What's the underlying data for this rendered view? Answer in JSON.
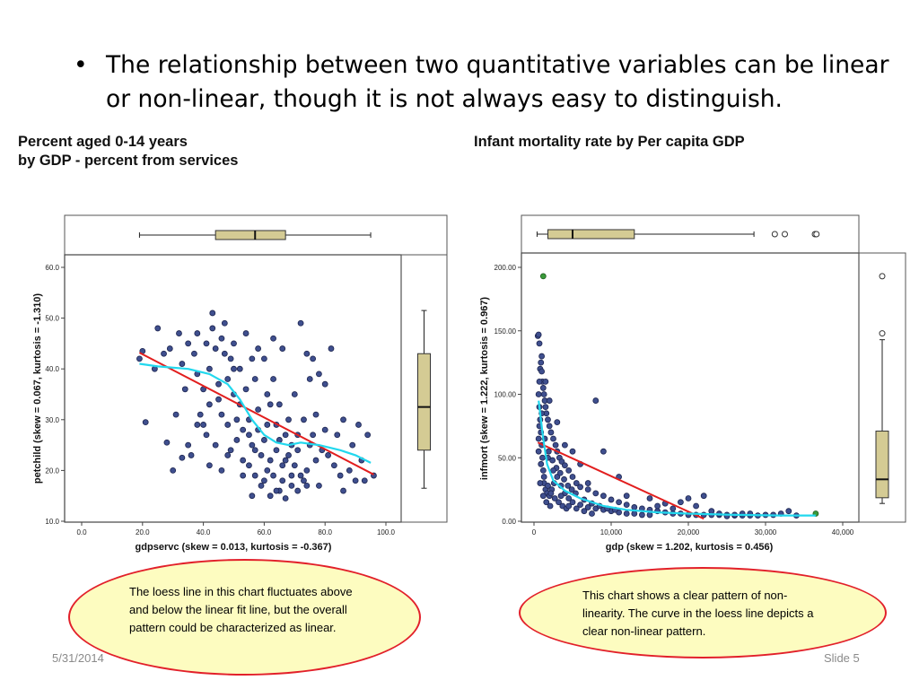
{
  "slide": {
    "bullet": "The relationship between two quantitative variables can be linear or non-linear, though it is not always easy to distinguish.",
    "date": "5/31/2014",
    "slide_number": "Slide 5"
  },
  "chart_data": [
    {
      "type": "scatter",
      "title": "Percent aged 0-14 years\nby GDP - percent from services",
      "xlabel": "gdpservc (skew = 0.013, kurtosis = -0.367)",
      "ylabel": "petchild (skew = 0.067, kurtosis = -1.310)",
      "xlim": [
        0,
        100
      ],
      "ylim": [
        10,
        60
      ],
      "xticks": [
        "0.0",
        "20.0",
        "40.0",
        "60.0",
        "80.0",
        "100.0"
      ],
      "yticks": [
        "10.0",
        "20.0",
        "30.0",
        "40.0",
        "50.0",
        "60.0"
      ],
      "linear_fit": [
        [
          19,
          43.2
        ],
        [
          96,
          19.2
        ]
      ],
      "loess": [
        [
          19,
          41
        ],
        [
          25,
          40.5
        ],
        [
          35,
          40
        ],
        [
          42,
          39
        ],
        [
          48,
          37
        ],
        [
          52,
          34
        ],
        [
          56,
          30
        ],
        [
          60,
          27
        ],
        [
          64,
          25.5
        ],
        [
          68,
          25
        ],
        [
          72,
          25.5
        ],
        [
          78,
          25
        ],
        [
          85,
          24
        ],
        [
          90,
          23
        ],
        [
          95,
          21.5
        ]
      ],
      "marginal_boxplot_x": {
        "min": 19,
        "q1": 44,
        "median": 57,
        "q3": 67,
        "max": 95
      },
      "marginal_boxplot_y": {
        "min": 16.5,
        "q1": 24,
        "median": 32.5,
        "q3": 43,
        "max": 51.5
      },
      "points": [
        [
          19,
          42
        ],
        [
          20,
          43.5
        ],
        [
          21,
          29.5
        ],
        [
          24,
          40
        ],
        [
          25,
          48
        ],
        [
          27,
          43
        ],
        [
          28,
          25.5
        ],
        [
          29,
          44
        ],
        [
          30,
          20
        ],
        [
          31,
          31
        ],
        [
          32,
          47
        ],
        [
          33,
          22.5
        ],
        [
          33,
          41
        ],
        [
          34,
          36
        ],
        [
          35,
          25
        ],
        [
          35,
          45
        ],
        [
          36,
          23
        ],
        [
          37,
          43
        ],
        [
          38,
          39
        ],
        [
          38,
          47
        ],
        [
          39,
          31
        ],
        [
          40,
          29
        ],
        [
          40,
          36
        ],
        [
          41,
          45
        ],
        [
          41,
          27
        ],
        [
          42,
          40
        ],
        [
          42,
          33
        ],
        [
          43,
          51
        ],
        [
          43,
          48
        ],
        [
          44,
          44
        ],
        [
          44,
          25
        ],
        [
          45,
          34
        ],
        [
          45,
          37
        ],
        [
          46,
          20
        ],
        [
          46,
          31
        ],
        [
          47,
          43
        ],
        [
          47,
          49
        ],
        [
          48,
          29
        ],
        [
          48,
          38
        ],
        [
          48,
          23
        ],
        [
          49,
          42
        ],
        [
          50,
          35
        ],
        [
          50,
          45
        ],
        [
          51,
          30
        ],
        [
          51,
          26
        ],
        [
          52,
          40
        ],
        [
          52,
          33
        ],
        [
          53,
          22
        ],
        [
          53,
          28
        ],
        [
          54,
          47
        ],
        [
          54,
          36
        ],
        [
          55,
          21
        ],
        [
          55,
          30
        ],
        [
          56,
          42
        ],
        [
          56,
          15
        ],
        [
          56,
          25
        ],
        [
          57,
          38
        ],
        [
          57,
          19
        ],
        [
          58,
          28
        ],
        [
          58,
          32
        ],
        [
          58,
          44
        ],
        [
          59,
          23
        ],
        [
          59,
          17
        ],
        [
          60,
          26
        ],
        [
          60,
          42
        ],
        [
          61,
          35
        ],
        [
          61,
          20
        ],
        [
          62,
          22
        ],
        [
          62,
          15
        ],
        [
          63,
          46
        ],
        [
          63,
          19
        ],
        [
          64,
          29
        ],
        [
          64,
          24
        ],
        [
          65,
          16
        ],
        [
          65,
          33
        ],
        [
          66,
          21
        ],
        [
          66,
          18
        ],
        [
          67,
          27
        ],
        [
          67,
          14.5
        ],
        [
          68,
          23
        ],
        [
          68,
          30
        ],
        [
          69,
          17
        ],
        [
          69,
          19
        ],
        [
          70,
          35
        ],
        [
          70,
          21
        ],
        [
          71,
          16
        ],
        [
          71,
          24
        ],
        [
          72,
          19
        ],
        [
          72,
          49
        ],
        [
          73,
          30
        ],
        [
          73,
          18
        ],
        [
          74,
          43
        ],
        [
          74,
          20
        ],
        [
          75,
          38
        ],
        [
          75,
          25
        ],
        [
          76,
          27
        ],
        [
          76,
          42
        ],
        [
          77,
          31
        ],
        [
          78,
          17
        ],
        [
          78,
          39
        ],
        [
          79,
          24
        ],
        [
          80,
          37
        ],
        [
          80,
          28
        ],
        [
          81,
          23
        ],
        [
          82,
          44
        ],
        [
          83,
          21
        ],
        [
          84,
          27
        ],
        [
          85,
          19
        ],
        [
          86,
          16
        ],
        [
          86,
          30
        ],
        [
          88,
          20
        ],
        [
          89,
          25
        ],
        [
          90,
          18
        ],
        [
          91,
          29
        ],
        [
          92,
          22
        ],
        [
          93,
          18
        ],
        [
          94,
          27
        ],
        [
          96,
          19
        ],
        [
          55,
          27
        ],
        [
          61,
          29
        ],
        [
          63,
          38
        ],
        [
          66,
          44
        ],
        [
          57,
          24
        ],
        [
          60,
          18
        ],
        [
          64,
          16
        ],
        [
          67,
          22
        ],
        [
          50,
          40
        ],
        [
          46,
          46
        ],
        [
          38,
          29
        ],
        [
          42,
          21
        ],
        [
          49,
          24
        ],
        [
          53,
          19
        ],
        [
          71,
          27
        ],
        [
          74,
          17
        ],
        [
          77,
          22
        ],
        [
          69,
          25
        ],
        [
          65,
          26
        ],
        [
          62,
          33
        ]
      ]
    },
    {
      "type": "scatter",
      "title": "Infant mortality rate by Per capita GDP",
      "xlabel": "gdp (skew = 1.202, kurtosis = 0.456)",
      "ylabel": "infmort (skew = 1.222, kurtosis = 0.967)",
      "xlim": [
        0,
        40000
      ],
      "ylim": [
        0,
        200
      ],
      "xticks": [
        "0",
        "10,000",
        "20,000",
        "30,000",
        "40,000"
      ],
      "yticks": [
        "0.00",
        "50.00",
        "100.00",
        "150.00",
        "200.00"
      ],
      "linear_fit": [
        [
          500,
          62
        ],
        [
          22000,
          2
        ]
      ],
      "loess": [
        [
          600,
          95
        ],
        [
          900,
          80
        ],
        [
          1200,
          65
        ],
        [
          1700,
          45
        ],
        [
          2500,
          32
        ],
        [
          4000,
          24
        ],
        [
          6000,
          18
        ],
        [
          9000,
          12
        ],
        [
          12000,
          9
        ],
        [
          16000,
          7
        ],
        [
          20000,
          6
        ],
        [
          26000,
          5
        ],
        [
          32000,
          4.5
        ],
        [
          36500,
          4.5
        ]
      ],
      "marginal_boxplot_x": {
        "min": 400,
        "q1": 1800,
        "median": 5000,
        "q3": 13000,
        "max": 28500,
        "outliers": [
          31200,
          32500,
          36400,
          36600
        ]
      },
      "marginal_boxplot_y": {
        "min": 14,
        "q1": 18.5,
        "median": 33,
        "q3": 71,
        "max": 143,
        "outliers": [
          148,
          193
        ]
      },
      "highlighted_points": [
        [
          1200,
          193
        ],
        [
          36500,
          6
        ]
      ],
      "points": [
        [
          500,
          146
        ],
        [
          600,
          147
        ],
        [
          700,
          140
        ],
        [
          800,
          120
        ],
        [
          900,
          125
        ],
        [
          1000,
          118
        ],
        [
          1100,
          110
        ],
        [
          1200,
          105
        ],
        [
          1300,
          100
        ],
        [
          1400,
          95
        ],
        [
          1500,
          90
        ],
        [
          1600,
          85
        ],
        [
          1800,
          80
        ],
        [
          2000,
          75
        ],
        [
          2200,
          70
        ],
        [
          2500,
          65
        ],
        [
          2800,
          60
        ],
        [
          3000,
          55
        ],
        [
          3300,
          50
        ],
        [
          3600,
          47
        ],
        [
          4000,
          44
        ],
        [
          4500,
          40
        ],
        [
          5000,
          35
        ],
        [
          5500,
          30
        ],
        [
          6000,
          27
        ],
        [
          7000,
          25
        ],
        [
          8000,
          22
        ],
        [
          9000,
          20
        ],
        [
          10000,
          17
        ],
        [
          11000,
          15
        ],
        [
          12000,
          13
        ],
        [
          13000,
          11
        ],
        [
          14000,
          10
        ],
        [
          15000,
          9
        ],
        [
          16000,
          8
        ],
        [
          17000,
          7
        ],
        [
          18000,
          6
        ],
        [
          19000,
          6
        ],
        [
          20000,
          5
        ],
        [
          21000,
          5
        ],
        [
          22000,
          5
        ],
        [
          23000,
          5
        ],
        [
          24000,
          5
        ],
        [
          25000,
          5
        ],
        [
          26000,
          4.5
        ],
        [
          27000,
          4.5
        ],
        [
          28000,
          4.5
        ],
        [
          30000,
          5
        ],
        [
          32000,
          6
        ],
        [
          34000,
          4.5
        ],
        [
          600,
          100
        ],
        [
          700,
          90
        ],
        [
          800,
          80
        ],
        [
          900,
          70
        ],
        [
          1000,
          60
        ],
        [
          1100,
          50
        ],
        [
          1200,
          40
        ],
        [
          1300,
          30
        ],
        [
          1500,
          25
        ],
        [
          1700,
          22
        ],
        [
          2000,
          20
        ],
        [
          2300,
          25
        ],
        [
          2600,
          30
        ],
        [
          3000,
          35
        ],
        [
          3500,
          28
        ],
        [
          4000,
          22
        ],
        [
          4500,
          18
        ],
        [
          5000,
          15
        ],
        [
          6000,
          13
        ],
        [
          7000,
          11
        ],
        [
          8000,
          10
        ],
        [
          9000,
          9
        ],
        [
          10000,
          8
        ],
        [
          11000,
          7
        ],
        [
          12000,
          6
        ],
        [
          13000,
          6
        ],
        [
          14000,
          5
        ],
        [
          15000,
          5
        ],
        [
          700,
          75
        ],
        [
          1000,
          85
        ],
        [
          1400,
          65
        ],
        [
          1900,
          55
        ],
        [
          2400,
          48
        ],
        [
          2900,
          42
        ],
        [
          3400,
          38
        ],
        [
          3900,
          33
        ],
        [
          4400,
          28
        ],
        [
          4900,
          25
        ],
        [
          5400,
          22
        ],
        [
          6500,
          17
        ],
        [
          7500,
          14
        ],
        [
          8500,
          12
        ],
        [
          9500,
          10
        ],
        [
          10500,
          9
        ],
        [
          600,
          55
        ],
        [
          900,
          45
        ],
        [
          1300,
          35
        ],
        [
          1800,
          28
        ],
        [
          2200,
          22
        ],
        [
          2700,
          18
        ],
        [
          3200,
          15
        ],
        [
          3700,
          12
        ],
        [
          4200,
          10
        ],
        [
          800,
          30
        ],
        [
          1200,
          20
        ],
        [
          1600,
          15
        ],
        [
          2100,
          12
        ],
        [
          9000,
          55
        ],
        [
          12000,
          20
        ],
        [
          22000,
          20
        ],
        [
          19000,
          15
        ],
        [
          16000,
          12
        ],
        [
          7000,
          30
        ],
        [
          4000,
          60
        ],
        [
          3000,
          78
        ],
        [
          2000,
          95
        ],
        [
          1500,
          110
        ],
        [
          8000,
          95
        ],
        [
          6000,
          45
        ],
        [
          5000,
          55
        ],
        [
          11000,
          35
        ],
        [
          15000,
          18
        ],
        [
          18000,
          10
        ],
        [
          25000,
          4
        ],
        [
          28000,
          6
        ],
        [
          31000,
          5
        ],
        [
          33000,
          8
        ],
        [
          600,
          65
        ],
        [
          700,
          110
        ],
        [
          1000,
          130
        ],
        [
          1800,
          50
        ],
        [
          2500,
          40
        ],
        [
          3500,
          20
        ],
        [
          4500,
          12
        ],
        [
          5500,
          10
        ],
        [
          6500,
          8
        ],
        [
          7500,
          6
        ],
        [
          17000,
          14
        ],
        [
          20000,
          18
        ],
        [
          21000,
          12
        ],
        [
          23000,
          8
        ],
        [
          24000,
          6
        ],
        [
          26000,
          5
        ],
        [
          27000,
          6
        ],
        [
          29000,
          4.5
        ]
      ]
    }
  ],
  "callouts": [
    {
      "text": "The loess line in this chart fluctuates above and below the linear fit line, but the overall pattern could be characterized as linear."
    },
    {
      "text": "This chart shows a clear pattern of non-linearity. The curve in the loess line depicts a clear non-linear pattern."
    }
  ],
  "colors": {
    "point_fill": "#3f4f8e",
    "point_stroke": "#1d2550",
    "linear_fit": "#e21e1e",
    "loess": "#22d8ee",
    "box_fill": "#d4cb94",
    "highlight_point": "#3a9a3a",
    "callout_fill": "#fdfcc0",
    "callout_border": "#e2202a"
  }
}
